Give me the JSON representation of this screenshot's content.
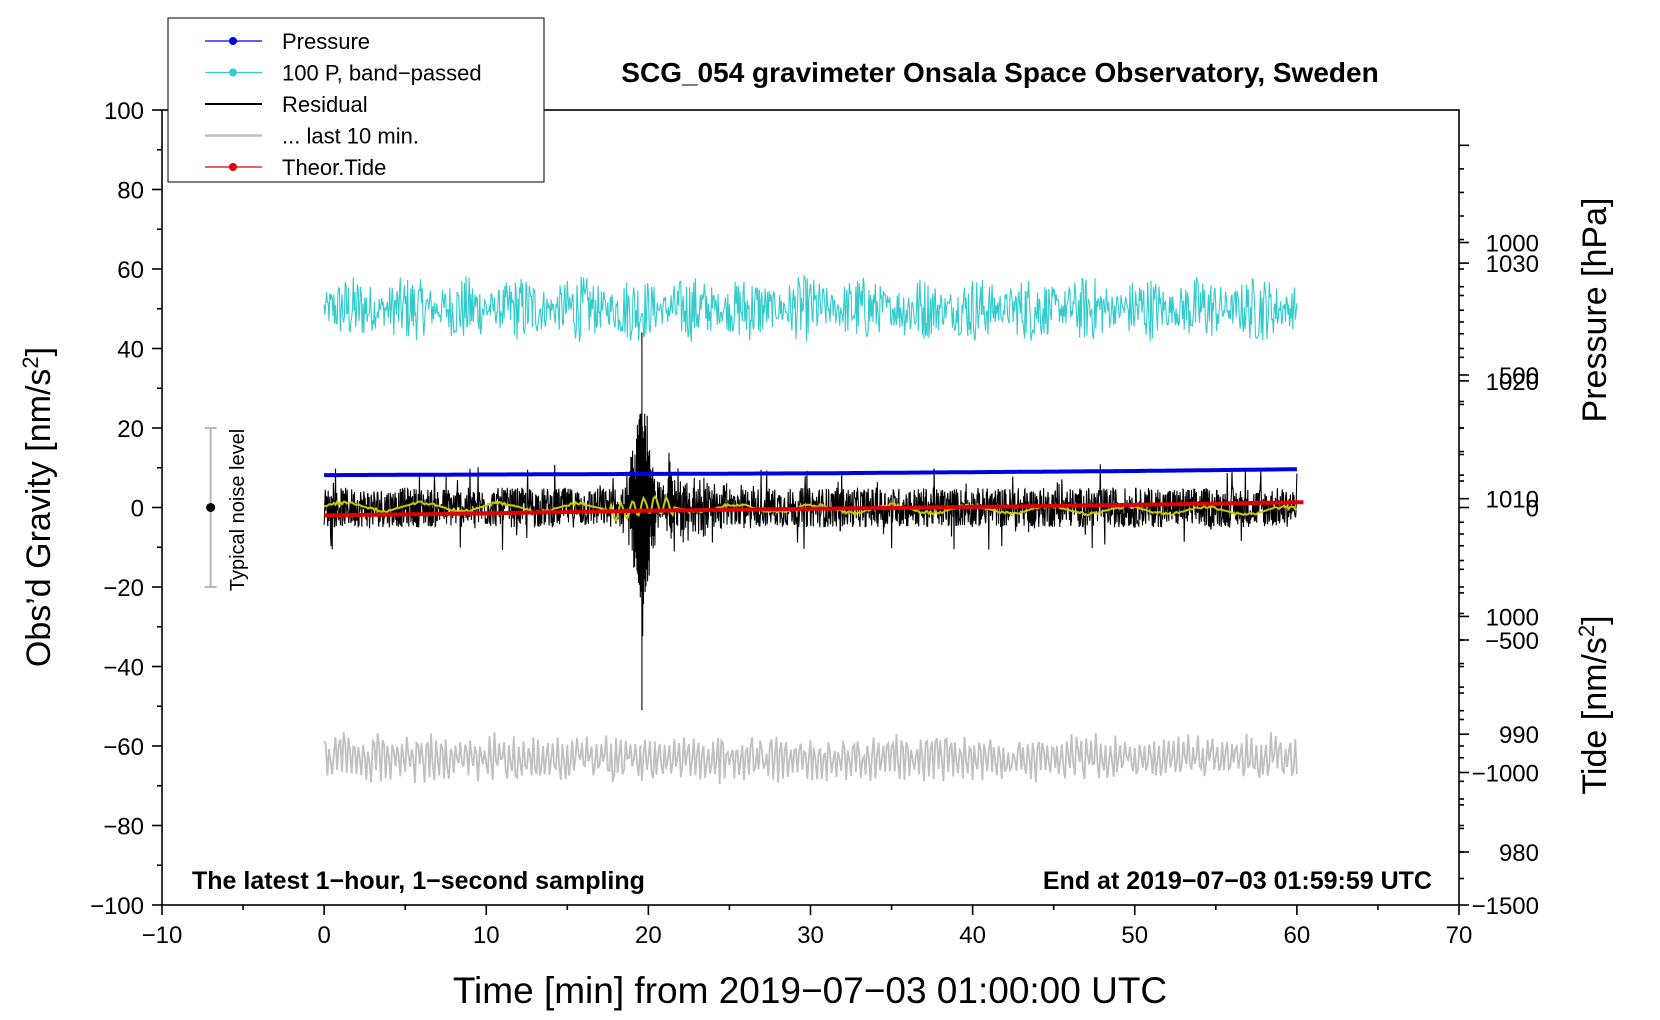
{
  "chart_data": {
    "type": "line",
    "title": "SCG_054 gravimeter Onsala Space Observatory, Sweden",
    "xlabel": "Time [min] from 2019−07−03 01:00:00 UTC",
    "ylabel_left": "Obs’d Gravity [nm/s",
    "ylabel_left_sup": "2",
    "ylabel_left_end": "]",
    "ylabel_right_pressure": "Pressure [hPa]",
    "ylabel_right_tide": "Tide [nm/s",
    "ylabel_right_tide_sup": "2",
    "ylabel_right_tide_end": "]",
    "note_left": "The latest 1−hour, 1−second sampling",
    "note_right": "End at 2019−07−03 01:59:59 UTC",
    "noise_label": "Typical noise level",
    "noise_range": [
      -20,
      20
    ],
    "noise_x": -7,
    "xlim": [
      -10,
      70
    ],
    "ylim": [
      -100,
      100
    ],
    "pressure_lim": [
      975.5,
      1043
    ],
    "tide_lim": [
      -1500,
      1500
    ],
    "x_ticks": [
      "−10",
      "0",
      "10",
      "20",
      "30",
      "40",
      "50",
      "60",
      "70"
    ],
    "x_tick_values": [
      -10,
      0,
      10,
      20,
      30,
      40,
      50,
      60,
      70
    ],
    "y_ticks": [
      "100",
      "80",
      "60",
      "40",
      "20",
      "0",
      "−20",
      "−40",
      "−60",
      "−80",
      "−100"
    ],
    "y_tick_values": [
      100,
      80,
      60,
      40,
      20,
      0,
      -20,
      -40,
      -60,
      -80,
      -100
    ],
    "pressure_ticks": [
      "1030",
      "1020",
      "1010",
      "1000",
      "990",
      "980"
    ],
    "pressure_tick_values": [
      1030,
      1020,
      1010,
      1000,
      990,
      980
    ],
    "tide_ticks": [
      "1000",
      "500",
      "0",
      "−500",
      "−1000",
      "−1500"
    ],
    "tide_tick_values": [
      1000,
      500,
      0,
      -500,
      -1000,
      -1500
    ],
    "legend_position": "top-left",
    "series": [
      {
        "name": "Pressure",
        "color": "#0000e0",
        "axis": "pressure",
        "x": [
          0,
          10,
          20,
          30,
          40,
          50,
          60
        ],
        "values": [
          1012.0,
          1012.05,
          1012.1,
          1012.15,
          1012.25,
          1012.35,
          1012.5
        ]
      },
      {
        "name": "100 P, band−passed",
        "color": "#33cccc",
        "axis": "gravity",
        "x": [
          0,
          60
        ],
        "values": [
          50,
          50
        ],
        "noise_amplitude": 6
      },
      {
        "name": "Residual",
        "color": "#000000",
        "axis": "gravity",
        "x": [
          0,
          60
        ],
        "values": [
          0,
          0
        ],
        "noise_amplitude": 5,
        "event_x": 19.6,
        "event_peak": [
          44,
          -51
        ]
      },
      {
        "name": "... last 10 min.",
        "color": "#c0c0c0",
        "axis": "gravity",
        "x": [
          0,
          60
        ],
        "values": [
          -63,
          -63
        ],
        "noise_amplitude": 6
      },
      {
        "name": "Theor.Tide",
        "color": "#e00000",
        "axis": "tide",
        "x": [
          0,
          10,
          20,
          30,
          40,
          50,
          60.5
        ],
        "values": [
          -30,
          -22,
          -12,
          -5,
          2,
          10,
          20
        ]
      }
    ],
    "smoothed_color": "#c8c800"
  }
}
